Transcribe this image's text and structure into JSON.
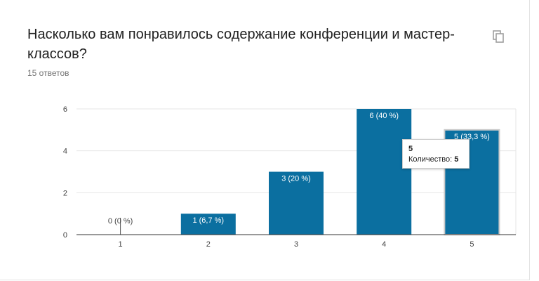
{
  "question": {
    "title": "Насколько вам понравилось содержание конференции и мастер-классов?",
    "responses": "15 ответов"
  },
  "icons": {
    "copy": "copy-icon"
  },
  "colors": {
    "bar": "#0b6fa0",
    "bar_highlight": "#0b6fa0",
    "grid": "#e6e6e6",
    "axis": "#333333"
  },
  "tooltip": {
    "category": "5",
    "label": "Количество:",
    "value": "5"
  },
  "chart_data": {
    "type": "bar",
    "categories": [
      "1",
      "2",
      "3",
      "4",
      "5"
    ],
    "values": [
      0,
      1,
      3,
      6,
      5
    ],
    "data_labels": [
      "0 (0 %)",
      "1 (6,7 %)",
      "3 (20 %)",
      "6 (40 %)",
      "5 (33,3 %)"
    ],
    "yticks": [
      "0",
      "2",
      "4",
      "6"
    ],
    "ylim": [
      0,
      6
    ],
    "grid": true,
    "highlighted_index": 4
  }
}
